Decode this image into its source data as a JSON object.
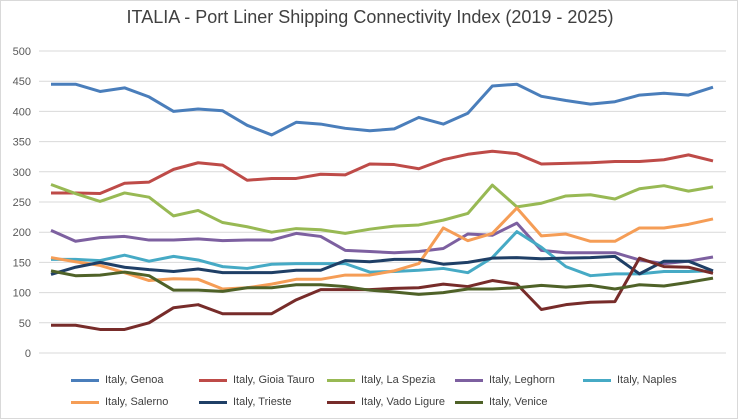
{
  "chart_data": {
    "type": "line",
    "title": "ITALIA - Port Liner Shipping Connectivity Index (2019 - 2025)",
    "xlabel": "",
    "ylabel": "",
    "ylim": [
      0,
      500
    ],
    "yticks": [
      "0",
      "50",
      "100",
      "150",
      "200",
      "250",
      "300",
      "350",
      "400",
      "450",
      "500"
    ],
    "grid": true,
    "legend": "bottom",
    "series": [
      {
        "name": "Italy, Genoa",
        "color": "#4a7ebb",
        "values": [
          445,
          445,
          433,
          439,
          424,
          400,
          404,
          401,
          377,
          361,
          382,
          379,
          372,
          368,
          371,
          390,
          379,
          397,
          442,
          445,
          425,
          418,
          412,
          416,
          427,
          430,
          427,
          440
        ]
      },
      {
        "name": "Italy, Gioia Tauro",
        "color": "#be4b48",
        "values": [
          265,
          265,
          264,
          281,
          283,
          304,
          315,
          311,
          286,
          289,
          289,
          296,
          295,
          313,
          312,
          305,
          320,
          329,
          334,
          330,
          313,
          314,
          315,
          317,
          317,
          320,
          328,
          318
        ]
      },
      {
        "name": "Italy, La Spezia",
        "color": "#98b954",
        "values": [
          279,
          264,
          251,
          265,
          258,
          227,
          236,
          216,
          209,
          200,
          206,
          204,
          198,
          205,
          210,
          212,
          220,
          231,
          278,
          242,
          248,
          260,
          262,
          255,
          272,
          277,
          268,
          275
        ]
      },
      {
        "name": "Italy, Leghorn",
        "color": "#7d60a0",
        "values": [
          203,
          185,
          191,
          193,
          187,
          187,
          189,
          186,
          187,
          187,
          198,
          193,
          170,
          168,
          166,
          168,
          173,
          197,
          195,
          215,
          170,
          166,
          166,
          166,
          154,
          148,
          152,
          159
        ]
      },
      {
        "name": "Italy, Naples",
        "color": "#46aac5",
        "values": [
          155,
          155,
          153,
          162,
          152,
          160,
          154,
          143,
          140,
          147,
          148,
          148,
          148,
          134,
          135,
          137,
          140,
          133,
          158,
          201,
          175,
          143,
          128,
          131,
          131,
          135,
          135,
          136
        ]
      },
      {
        "name": "Italy, Salerno",
        "color": "#f59d56",
        "values": [
          158,
          151,
          145,
          133,
          120,
          123,
          122,
          106,
          108,
          114,
          122,
          122,
          129,
          129,
          136,
          148,
          207,
          186,
          198,
          240,
          194,
          197,
          185,
          185,
          207,
          207,
          213,
          222
        ]
      },
      {
        "name": "Italy, Trieste",
        "color": "#1f3f66",
        "values": [
          130,
          142,
          150,
          142,
          138,
          135,
          139,
          133,
          133,
          133,
          137,
          137,
          153,
          151,
          155,
          155,
          147,
          150,
          157,
          158,
          156,
          157,
          158,
          160,
          131,
          152,
          152,
          136
        ]
      },
      {
        "name": "Italy, Vado Ligure",
        "color": "#772c2a",
        "values": [
          46,
          46,
          39,
          39,
          50,
          75,
          80,
          65,
          65,
          65,
          88,
          105,
          105,
          105,
          107,
          108,
          114,
          110,
          120,
          114,
          72,
          80,
          84,
          85,
          157,
          143,
          142,
          132
        ]
      },
      {
        "name": "Italy, Venice",
        "color": "#4f6228",
        "values": [
          136,
          128,
          129,
          134,
          128,
          104,
          104,
          102,
          108,
          108,
          113,
          113,
          110,
          104,
          101,
          97,
          100,
          106,
          106,
          108,
          112,
          109,
          112,
          106,
          113,
          111,
          117,
          124
        ]
      }
    ]
  }
}
